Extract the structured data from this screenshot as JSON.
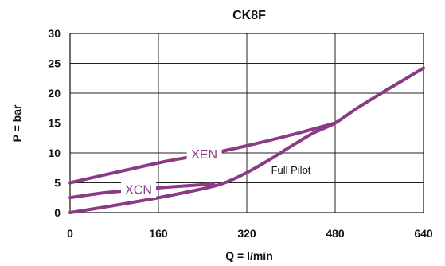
{
  "chart_data": {
    "type": "line",
    "title": "CK8F",
    "xlabel": "Q = l/min",
    "ylabel": "P = bar",
    "xlim": [
      0,
      640
    ],
    "ylim": [
      0,
      30
    ],
    "xticks": [
      "0",
      "160",
      "320",
      "480",
      "640"
    ],
    "yticks": [
      "0",
      "5",
      "10",
      "15",
      "20",
      "25",
      "30"
    ],
    "grid": true,
    "series_color": "#8b3a86",
    "series": [
      {
        "name": "XEN",
        "points": [
          [
            0,
            5.0
          ],
          [
            100,
            7.1
          ],
          [
            180,
            8.7
          ],
          [
            260,
            10.0
          ],
          [
            320,
            11.2
          ],
          [
            400,
            13.0
          ],
          [
            480,
            15.0
          ]
        ]
      },
      {
        "name": "XCN",
        "points": [
          [
            0,
            2.5
          ],
          [
            60,
            3.3
          ],
          [
            120,
            3.8
          ],
          [
            180,
            4.3
          ],
          [
            260,
            4.8
          ]
        ]
      },
      {
        "name": "Full Pilot",
        "points": [
          [
            0,
            0.0
          ],
          [
            80,
            1.2
          ],
          [
            160,
            2.5
          ],
          [
            240,
            4.0
          ],
          [
            280,
            5.0
          ],
          [
            320,
            6.7
          ],
          [
            360,
            8.8
          ],
          [
            400,
            11.1
          ],
          [
            440,
            13.3
          ],
          [
            480,
            15.0
          ],
          [
            520,
            17.5
          ],
          [
            560,
            19.8
          ],
          [
            600,
            22.0
          ],
          [
            640,
            24.2
          ]
        ]
      }
    ],
    "annotations": [
      {
        "text": "Full Pilot",
        "x": 400,
        "y": 7.2
      }
    ]
  }
}
